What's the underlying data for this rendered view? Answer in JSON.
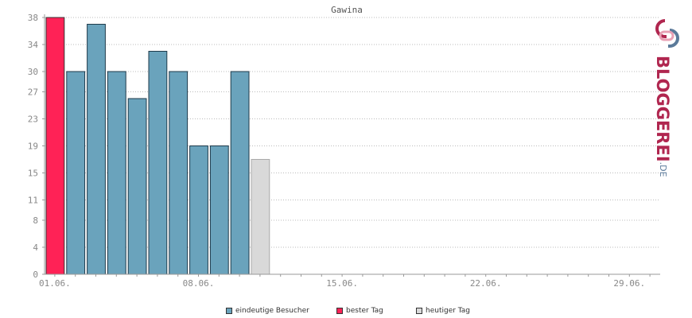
{
  "chart_data": {
    "type": "bar",
    "title": "Gawina",
    "x_tick_labels": [
      "01.06.",
      "08.06.",
      "15.06.",
      "22.06.",
      "29.06."
    ],
    "y_tick_labels": [
      0,
      4,
      8,
      11,
      15,
      19,
      23,
      27,
      30,
      34,
      38
    ],
    "ylim": [
      0,
      38
    ],
    "days": 30,
    "values": [
      38,
      30,
      37,
      30,
      26,
      33,
      30,
      19,
      19,
      30,
      17
    ],
    "kinds": [
      "best",
      "normal",
      "normal",
      "normal",
      "normal",
      "normal",
      "normal",
      "normal",
      "normal",
      "normal",
      "today"
    ],
    "legend": [
      {
        "label": "eindeutige Besucher",
        "color": "#6aa3bc"
      },
      {
        "label": "bester Tag",
        "color": "#ff2256"
      },
      {
        "label": "heutiger Tag",
        "color": "#d9d9d9"
      }
    ],
    "legend_placement": "bottom",
    "grid": true
  },
  "logo": {
    "text": "BLOGGEREI",
    "suffix": ".DE"
  }
}
